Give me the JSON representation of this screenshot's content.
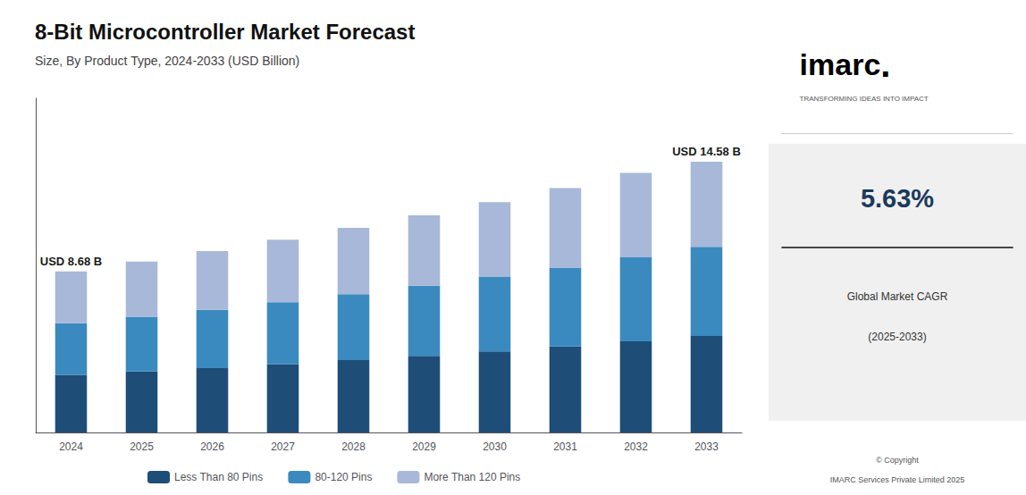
{
  "chart_data": {
    "type": "bar",
    "title": "8-Bit Microcontroller Market Forecast",
    "subtitle": "Size, By Product Type, 2024-2033 (USD Billion)",
    "categories": [
      "2024",
      "2025",
      "2026",
      "2027",
      "2028",
      "2029",
      "2030",
      "2031",
      "2032",
      "2033"
    ],
    "series": [
      {
        "name": "Less Than 80 Pins",
        "color": "#1e4d78",
        "values": [
          3.1,
          3.28,
          3.47,
          3.68,
          3.9,
          4.13,
          4.37,
          4.63,
          4.91,
          5.2
        ]
      },
      {
        "name": "80-120 Pins",
        "color": "#3a8abf",
        "values": [
          2.78,
          2.95,
          3.14,
          3.34,
          3.55,
          3.77,
          4.0,
          4.25,
          4.52,
          4.8
        ]
      },
      {
        "name": "More Than 120 Pins",
        "color": "#a8b8d8",
        "values": [
          2.8,
          2.97,
          3.16,
          3.36,
          3.57,
          3.79,
          4.03,
          4.28,
          4.55,
          4.58
        ]
      }
    ],
    "stacked": true,
    "ylim": [
      0,
      18
    ],
    "tick_labels": "x",
    "grid": false,
    "legend": "bottom",
    "annotations": [
      {
        "text": "USD 8.68 B",
        "x": "2024"
      },
      {
        "text": "USD 14.58 B",
        "x": "2033"
      },
      {
        "text": "imarc"
      },
      {
        "text": "."
      },
      {
        "text": "TRANSFORMING IDEAS INTO IMPACT"
      },
      {
        "text": "5.63%"
      },
      {
        "text": "Global Market CAGR"
      },
      {
        "text": "(2025-2033)"
      },
      {
        "text": "© Copyright"
      },
      {
        "text": "IMARC Services Private Limited 2025"
      }
    ]
  }
}
